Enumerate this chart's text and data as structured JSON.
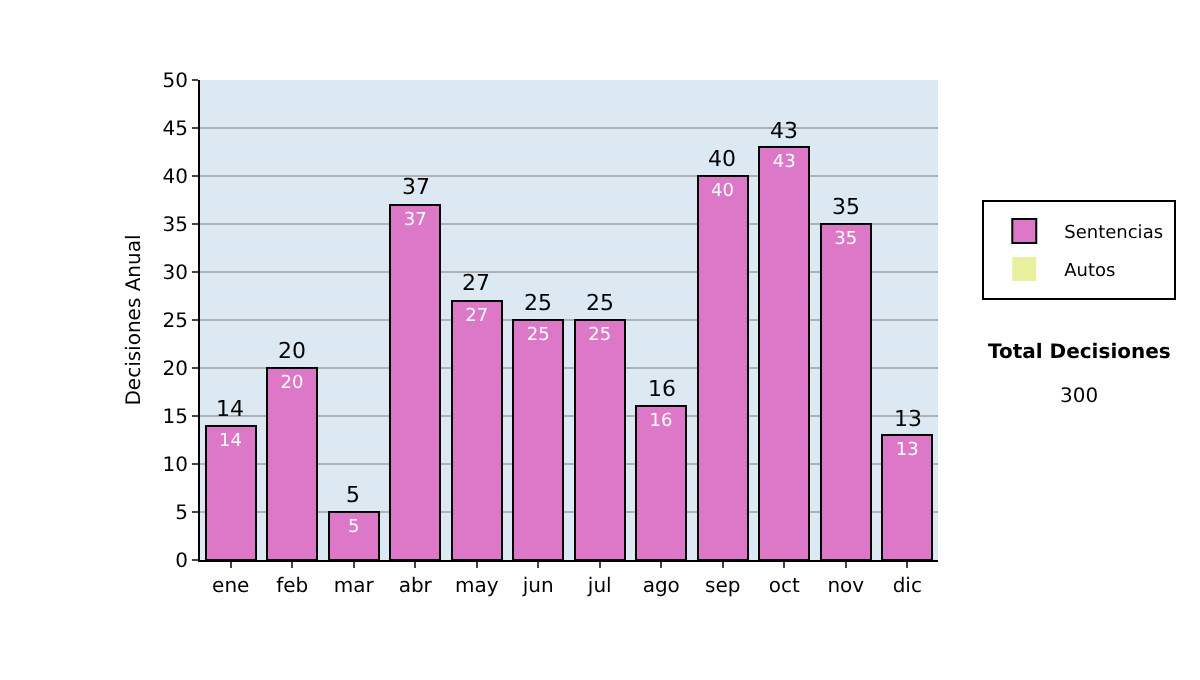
{
  "chart_data": {
    "type": "bar",
    "ylabel": "Decisiones Anual",
    "categories": [
      "ene",
      "feb",
      "mar",
      "abr",
      "may",
      "jun",
      "jul",
      "ago",
      "sep",
      "oct",
      "nov",
      "dic"
    ],
    "series": [
      {
        "name": "Sentencias",
        "color": "#dd77c8",
        "values": [
          14,
          20,
          5,
          37,
          27,
          25,
          25,
          16,
          40,
          43,
          35,
          13
        ],
        "value_labels": [
          "14",
          "20",
          "5",
          "37",
          "27",
          "25",
          "25",
          "16",
          "40",
          "43",
          "35",
          "13"
        ]
      },
      {
        "name": "Autos",
        "color": "#e8f0a0",
        "values": [
          0,
          0,
          0,
          0,
          0,
          0,
          0,
          0,
          0,
          0,
          0,
          0
        ]
      }
    ],
    "stacked": true,
    "totals": [
      "14",
      "20",
      "5",
      "37",
      "27",
      "25",
      "25",
      "16",
      "40",
      "43",
      "35",
      "13"
    ],
    "ylim": [
      0,
      50
    ],
    "yticks": [
      0,
      5,
      10,
      15,
      20,
      25,
      30,
      35,
      40,
      45,
      50
    ],
    "grid": "y",
    "legend": "right",
    "annotations": [
      "Total Decisiones",
      "300"
    ]
  }
}
